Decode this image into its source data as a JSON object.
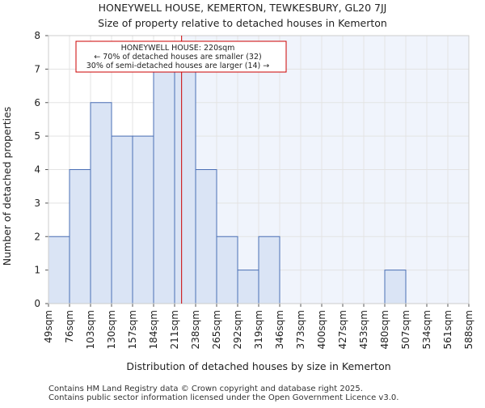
{
  "chart_data": {
    "type": "bar",
    "title_line1": "HONEYWELL HOUSE, KEMERTON, TEWKESBURY, GL20 7JJ",
    "title_line2": "Size of property relative to detached houses in Kemerton",
    "xlabel": "Distribution of detached houses by size in Kemerton",
    "ylabel": "Number of detached properties",
    "bin_edges": [
      49,
      76,
      103,
      130,
      157,
      184,
      211,
      238,
      265,
      292,
      319,
      346,
      373,
      400,
      427,
      453,
      480,
      507,
      534,
      561,
      588
    ],
    "tick_labels": [
      "49sqm",
      "76sqm",
      "103sqm",
      "130sqm",
      "157sqm",
      "184sqm",
      "211sqm",
      "238sqm",
      "265sqm",
      "292sqm",
      "319sqm",
      "346sqm",
      "373sqm",
      "400sqm",
      "427sqm",
      "453sqm",
      "480sqm",
      "507sqm",
      "534sqm",
      "561sqm",
      "588sqm"
    ],
    "values": [
      2,
      4,
      6,
      5,
      5,
      7,
      7,
      4,
      2,
      1,
      2,
      0,
      0,
      0,
      0,
      0,
      1,
      0,
      0,
      0
    ],
    "ylim": [
      0,
      8
    ],
    "yticks": [
      0,
      1,
      2,
      3,
      4,
      5,
      6,
      7,
      8
    ],
    "marker_value": 220,
    "marker_color": "#cc0000",
    "bar_color": "#dae4f5",
    "bar_edge_color": "#4a6fb5",
    "highlight_bg": "#f0f4fc",
    "annotation": {
      "line1": "HONEYWELL HOUSE: 220sqm",
      "line2": "← 70% of detached houses are smaller (32)",
      "line3": "30% of semi-detached houses are larger (14) →"
    }
  },
  "footer": {
    "line1": "Contains HM Land Registry data © Crown copyright and database right 2025.",
    "line2": "Contains public sector information licensed under the Open Government Licence v3.0."
  }
}
